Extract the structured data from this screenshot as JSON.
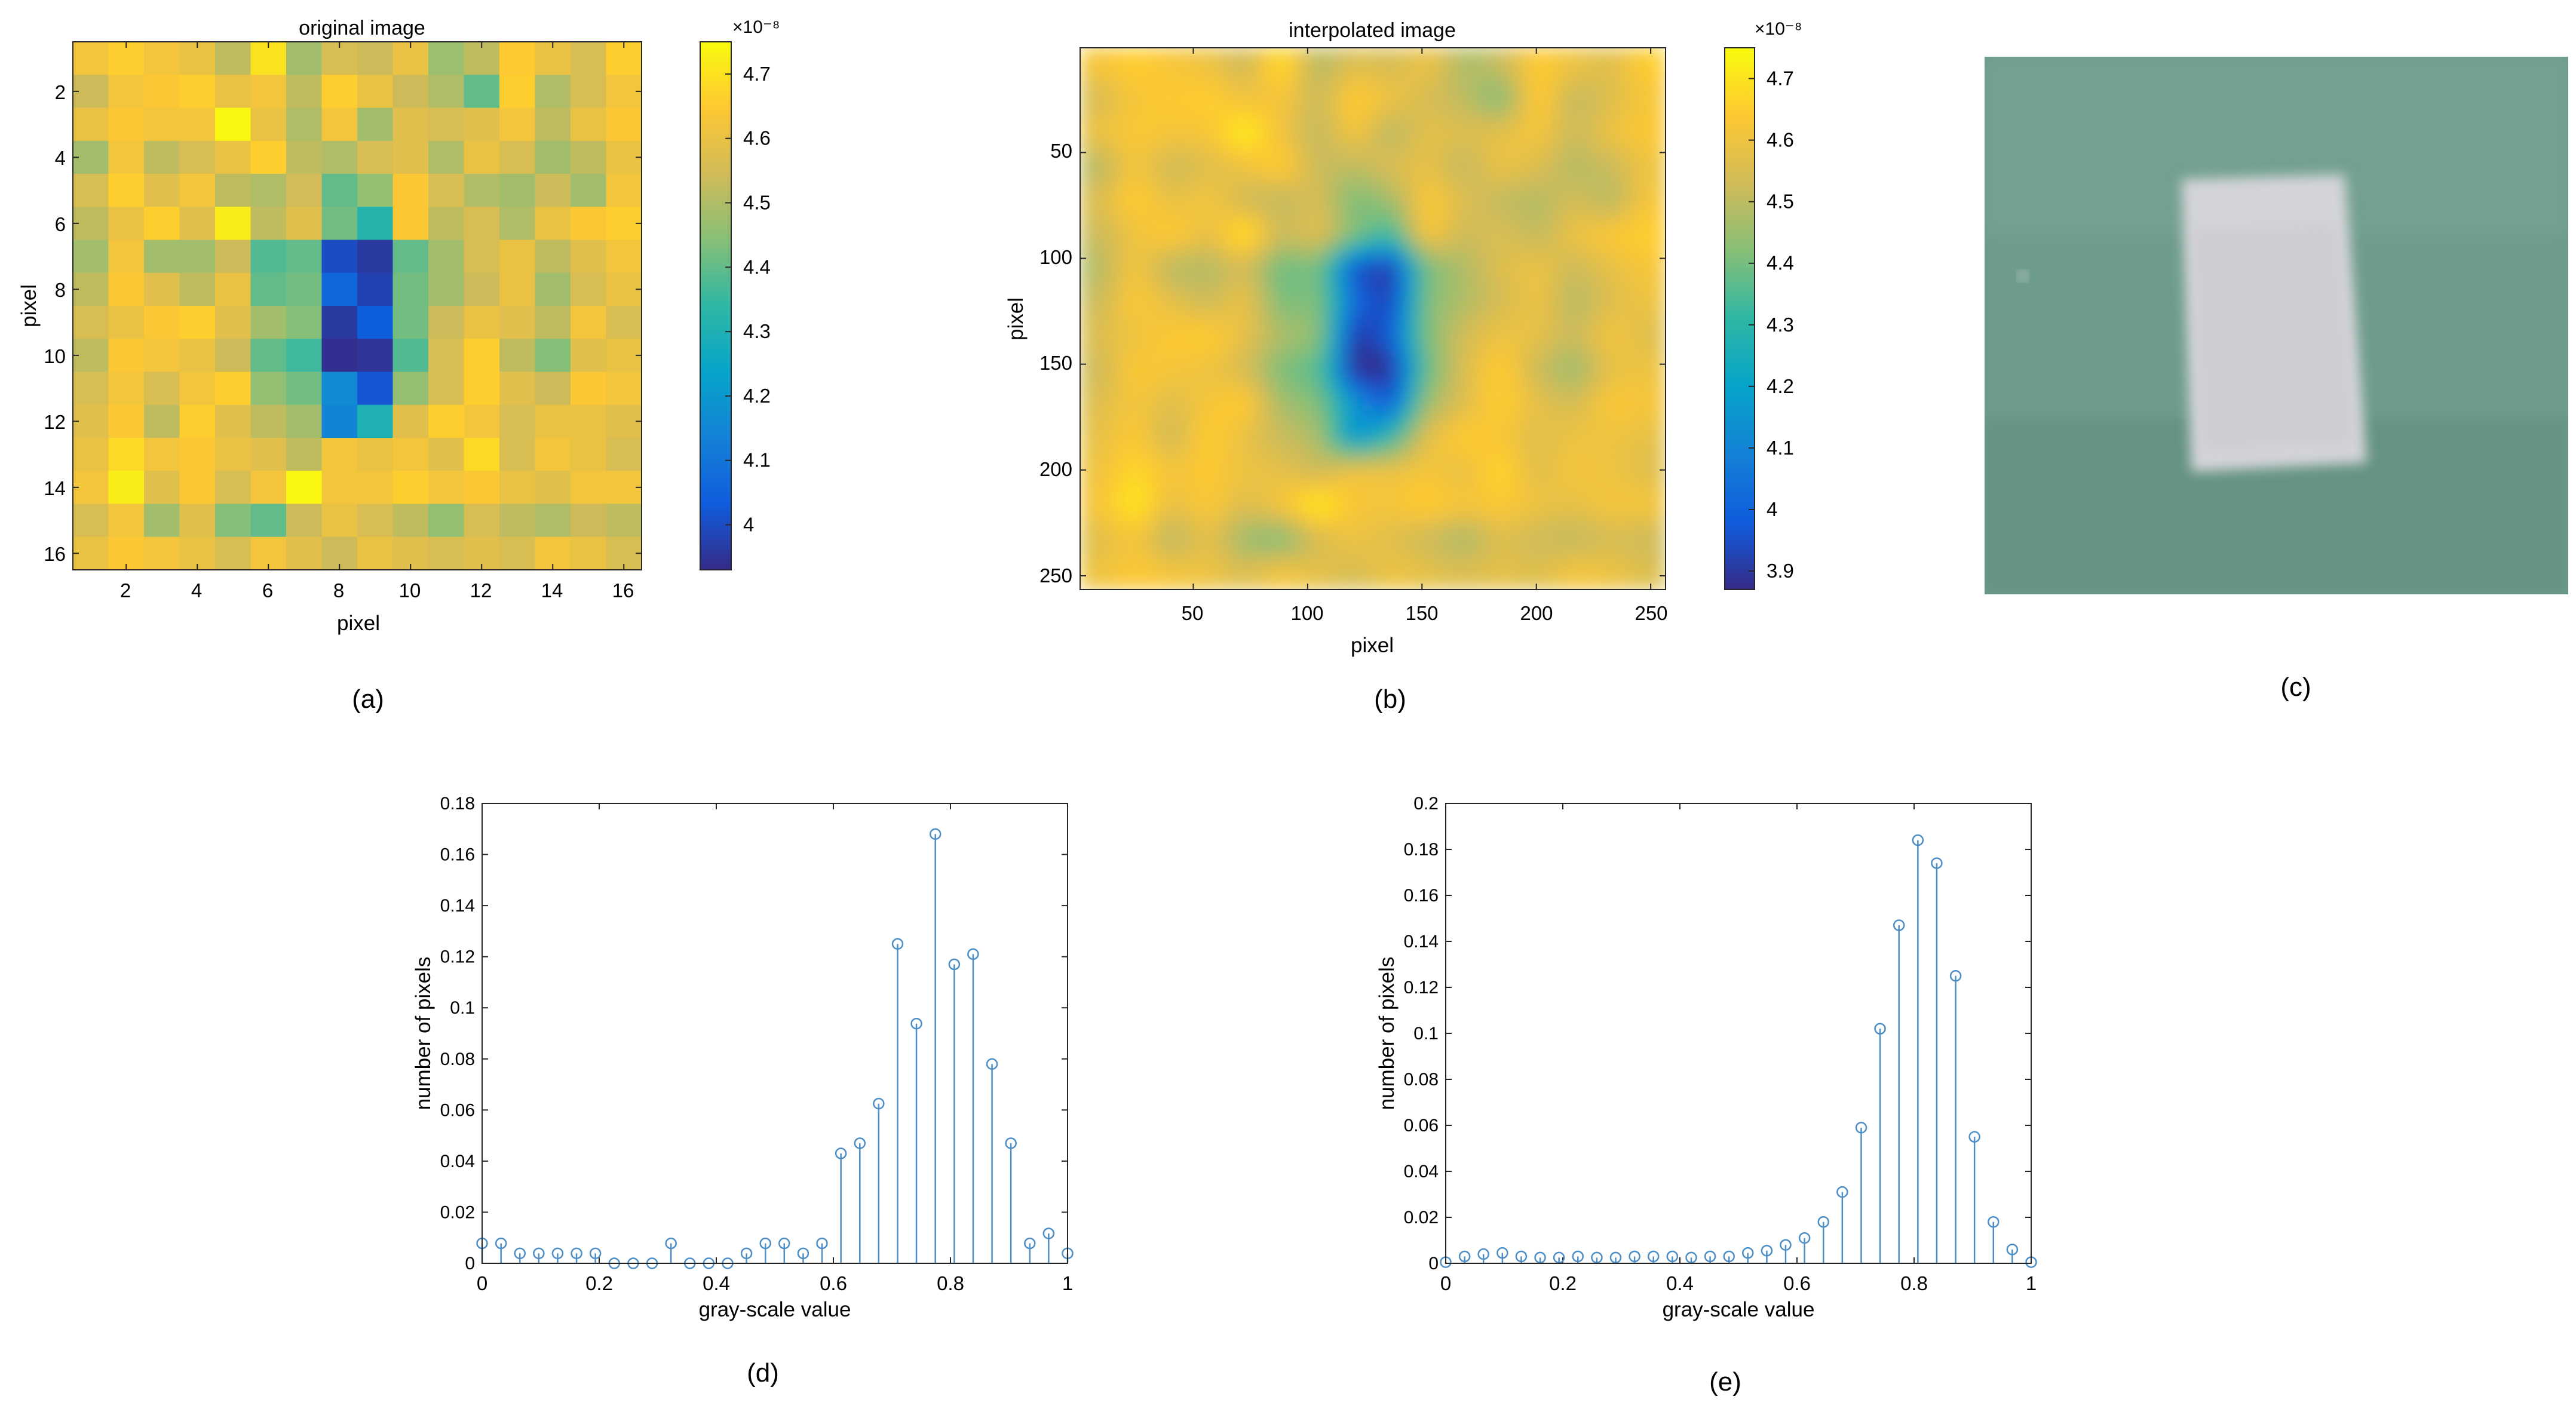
{
  "colors": {
    "parula": [
      "#352A87",
      "#0F5CDD",
      "#1481D6",
      "#06A4CA",
      "#2EB7A4",
      "#87BF77",
      "#D1BB59",
      "#FEC832",
      "#F9FB0E"
    ],
    "stem": "#4D8EC6",
    "photo_bg": "#6E9C8C",
    "photo_block": "#D4D4D8"
  },
  "panel_a": {
    "title": "original image",
    "xlabel": "pixel",
    "ylabel": "pixel",
    "xticks": [
      "2",
      "4",
      "6",
      "8",
      "10",
      "12",
      "14",
      "16"
    ],
    "yticks": [
      "2",
      "4",
      "6",
      "8",
      "10",
      "12",
      "14",
      "16"
    ],
    "caption": "(a)",
    "colorbar": {
      "exponent": "×10⁻⁸",
      "ticks": [
        "4.7",
        "4.6",
        "4.5",
        "4.4",
        "4.3",
        "4.2",
        "4.1",
        "4"
      ],
      "min": 3.93,
      "max": 4.75
    }
  },
  "panel_b": {
    "title": "interpolated image",
    "xlabel": "pixel",
    "ylabel": "pixel",
    "xticks": [
      "50",
      "100",
      "150",
      "200",
      "250"
    ],
    "yticks": [
      "50",
      "100",
      "150",
      "200",
      "250"
    ],
    "caption": "(b)",
    "colorbar": {
      "exponent": "×10⁻⁸",
      "ticks": [
        "4.7",
        "4.6",
        "4.5",
        "4.4",
        "4.3",
        "4.2",
        "4.1",
        "4",
        "3.9"
      ],
      "min": 3.87,
      "max": 4.75
    }
  },
  "panel_c": {
    "caption": "(c)",
    "image_name": "photo of translucent sample block on green background"
  },
  "chart_data": [
    {
      "panel": "a",
      "type": "heatmap",
      "title": "original image",
      "xlabel": "pixel",
      "ylabel": "pixel",
      "xlim": [
        0.5,
        16.5
      ],
      "ylim": [
        0.5,
        16.5
      ],
      "colorbar_range": [
        3.93,
        4.75
      ],
      "colorbar_exponent": "1e-8",
      "values": [
        [
          4.62,
          4.66,
          4.62,
          4.6,
          4.52,
          4.7,
          4.48,
          4.56,
          4.54,
          4.6,
          4.47,
          4.52,
          4.65,
          4.6,
          4.56,
          4.66
        ],
        [
          4.54,
          4.62,
          4.64,
          4.66,
          4.6,
          4.62,
          4.52,
          4.66,
          4.6,
          4.54,
          4.5,
          4.4,
          4.66,
          4.5,
          4.56,
          4.62
        ],
        [
          4.6,
          4.64,
          4.62,
          4.62,
          4.74,
          4.6,
          4.5,
          4.62,
          4.48,
          4.58,
          4.56,
          4.58,
          4.62,
          4.52,
          4.6,
          4.64
        ],
        [
          4.48,
          4.62,
          4.52,
          4.56,
          4.6,
          4.66,
          4.52,
          4.5,
          4.56,
          4.58,
          4.5,
          4.6,
          4.56,
          4.48,
          4.52,
          4.6
        ],
        [
          4.56,
          4.66,
          4.58,
          4.62,
          4.52,
          4.5,
          4.55,
          4.4,
          4.46,
          4.64,
          4.56,
          4.5,
          4.48,
          4.54,
          4.48,
          4.62
        ],
        [
          4.52,
          4.6,
          4.66,
          4.58,
          4.72,
          4.52,
          4.58,
          4.42,
          4.32,
          4.64,
          4.52,
          4.56,
          4.5,
          4.6,
          4.64,
          4.66
        ],
        [
          4.48,
          4.62,
          4.48,
          4.48,
          4.54,
          4.38,
          4.4,
          4.0,
          3.96,
          4.4,
          4.48,
          4.56,
          4.6,
          4.52,
          4.58,
          4.62
        ],
        [
          4.52,
          4.64,
          4.58,
          4.52,
          4.6,
          4.4,
          4.42,
          4.06,
          3.98,
          4.42,
          4.48,
          4.54,
          4.6,
          4.48,
          4.56,
          4.6
        ],
        [
          4.56,
          4.6,
          4.64,
          4.66,
          4.58,
          4.48,
          4.44,
          3.96,
          4.04,
          4.42,
          4.54,
          4.6,
          4.58,
          4.52,
          4.62,
          4.56
        ],
        [
          4.52,
          4.64,
          4.62,
          4.6,
          4.54,
          4.4,
          4.36,
          3.94,
          3.95,
          4.38,
          4.56,
          4.66,
          4.52,
          4.44,
          4.58,
          4.6
        ],
        [
          4.56,
          4.62,
          4.56,
          4.62,
          4.66,
          4.46,
          4.42,
          4.16,
          4.02,
          4.46,
          4.56,
          4.66,
          4.58,
          4.54,
          4.64,
          4.62
        ],
        [
          4.58,
          4.64,
          4.52,
          4.66,
          4.58,
          4.52,
          4.48,
          4.14,
          4.3,
          4.58,
          4.66,
          4.62,
          4.56,
          4.6,
          4.6,
          4.58
        ],
        [
          4.6,
          4.68,
          4.62,
          4.64,
          4.6,
          4.58,
          4.52,
          4.62,
          4.6,
          4.62,
          4.58,
          4.68,
          4.56,
          4.62,
          4.6,
          4.56
        ],
        [
          4.62,
          4.72,
          4.58,
          4.64,
          4.56,
          4.62,
          4.74,
          4.62,
          4.62,
          4.66,
          4.62,
          4.64,
          4.6,
          4.58,
          4.62,
          4.62
        ],
        [
          4.56,
          4.62,
          4.48,
          4.58,
          4.44,
          4.4,
          4.54,
          4.6,
          4.56,
          4.52,
          4.46,
          4.56,
          4.52,
          4.5,
          4.54,
          4.52
        ],
        [
          4.6,
          4.64,
          4.62,
          4.6,
          4.56,
          4.62,
          4.58,
          4.54,
          4.6,
          4.58,
          4.56,
          4.58,
          4.56,
          4.62,
          4.6,
          4.56
        ]
      ]
    },
    {
      "panel": "b",
      "type": "heatmap",
      "title": "interpolated image",
      "xlabel": "pixel",
      "ylabel": "pixel",
      "xlim": [
        1,
        256
      ],
      "ylim": [
        1,
        256
      ],
      "colorbar_range": [
        3.87,
        4.75
      ],
      "colorbar_exponent": "1e-8",
      "note": "bicubic interpolation of panel a onto 256x256 grid"
    },
    {
      "panel": "d",
      "type": "stem",
      "caption": "(d)",
      "xlabel": "gray-scale value",
      "ylabel": "number of pixels",
      "xlim": [
        0,
        1
      ],
      "ylim": [
        0,
        0.18
      ],
      "xticks": [
        "0",
        "0.2",
        "0.4",
        "0.6",
        "0.8",
        "1"
      ],
      "yticks": [
        "0",
        "0.02",
        "0.04",
        "0.06",
        "0.08",
        "0.1",
        "0.12",
        "0.14",
        "0.16",
        "0.18"
      ],
      "x": [
        0,
        0.0323,
        0.0645,
        0.0968,
        0.129,
        0.1613,
        0.1935,
        0.2258,
        0.2581,
        0.2903,
        0.3226,
        0.3548,
        0.3871,
        0.4194,
        0.4516,
        0.4839,
        0.5161,
        0.5484,
        0.5806,
        0.6129,
        0.6452,
        0.6774,
        0.7097,
        0.7419,
        0.7742,
        0.8065,
        0.8387,
        0.871,
        0.9032,
        0.9355,
        0.9677,
        1
      ],
      "values": [
        0.0078,
        0.0078,
        0.0039,
        0.0039,
        0.0039,
        0.0039,
        0.0039,
        0,
        0,
        0,
        0.0078,
        0,
        0,
        0,
        0.0039,
        0.0078,
        0.0078,
        0.0039,
        0.0078,
        0.043,
        0.047,
        0.0625,
        0.125,
        0.0938,
        0.168,
        0.117,
        0.121,
        0.078,
        0.047,
        0.0078,
        0.0117,
        0.0039
      ]
    },
    {
      "panel": "e",
      "type": "stem",
      "caption": "(e)",
      "xlabel": "gray-scale value",
      "ylabel": "number of pixels",
      "xlim": [
        0,
        1
      ],
      "ylim": [
        0,
        0.2
      ],
      "xticks": [
        "0",
        "0.2",
        "0.4",
        "0.6",
        "0.8",
        "1"
      ],
      "yticks": [
        "0",
        "0.02",
        "0.04",
        "0.06",
        "0.08",
        "0.1",
        "0.12",
        "0.14",
        "0.16",
        "0.18",
        "0.2"
      ],
      "x": [
        0,
        0.0323,
        0.0645,
        0.0968,
        0.129,
        0.1613,
        0.1935,
        0.2258,
        0.2581,
        0.2903,
        0.3226,
        0.3548,
        0.3871,
        0.4194,
        0.4516,
        0.4839,
        0.5161,
        0.5484,
        0.5806,
        0.6129,
        0.6452,
        0.6774,
        0.7097,
        0.7419,
        0.7742,
        0.8065,
        0.8387,
        0.871,
        0.9032,
        0.9355,
        0.9677,
        1
      ],
      "values": [
        0.0005,
        0.003,
        0.004,
        0.0045,
        0.003,
        0.0025,
        0.0025,
        0.003,
        0.0025,
        0.0025,
        0.003,
        0.003,
        0.003,
        0.0025,
        0.003,
        0.003,
        0.0045,
        0.0055,
        0.008,
        0.011,
        0.018,
        0.031,
        0.059,
        0.102,
        0.147,
        0.184,
        0.174,
        0.125,
        0.055,
        0.018,
        0.006,
        0.0005
      ]
    }
  ]
}
